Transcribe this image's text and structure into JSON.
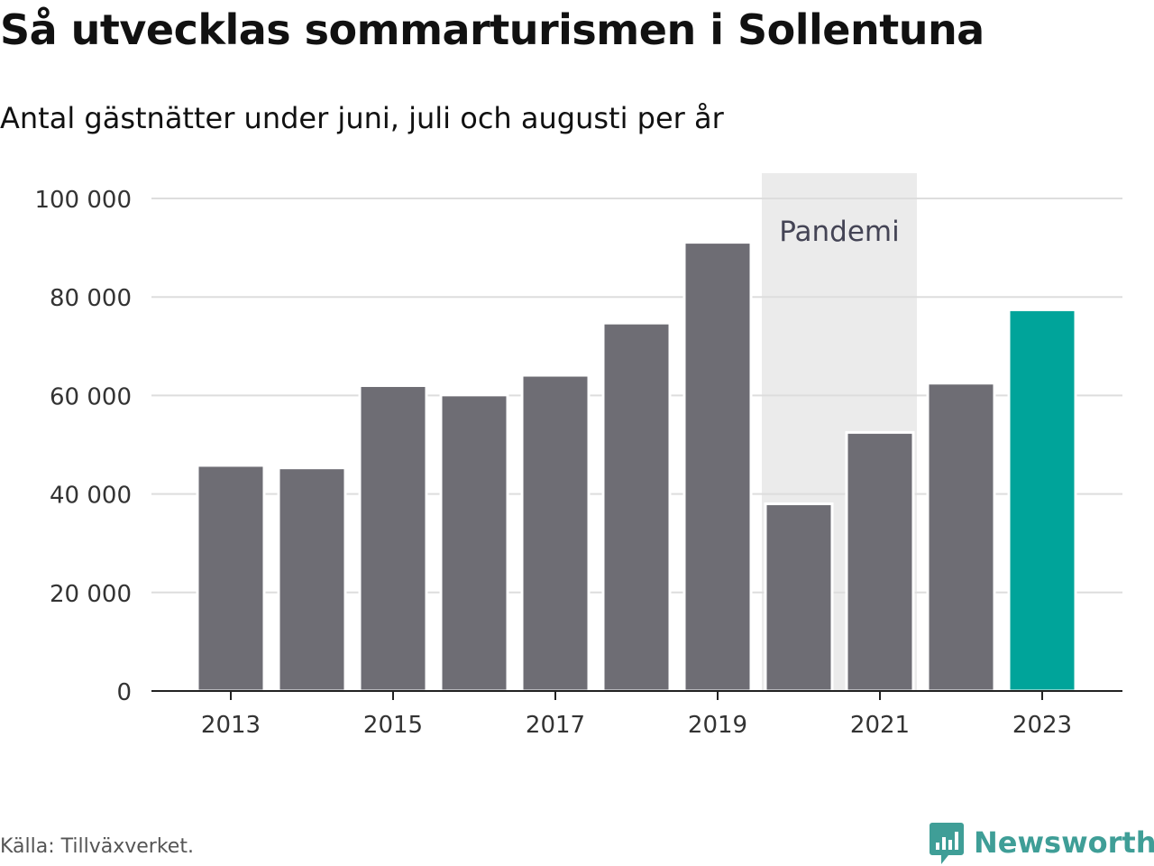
{
  "header": {
    "title": "Så utvecklas sommarturismen i Sollentuna",
    "subtitle": "Antal gästnätter under juni, juli och augusti per år"
  },
  "footer": {
    "source": "Källa: Tillväxverket.",
    "brand": "Newsworthy"
  },
  "colors": {
    "bar": "#6e6d74",
    "highlight": "#00a49a",
    "shade": "#ebebeb",
    "grid": "#dddddd",
    "brand": "#3f9e97"
  },
  "icons": {
    "brand_logo": "newsworthy-chart-bubble-icon"
  },
  "chart_data": {
    "type": "bar",
    "title": "Så utvecklas sommarturismen i Sollentuna",
    "subtitle": "Antal gästnätter under juni, juli och augusti per år",
    "categories": [
      "2013",
      "2014",
      "2015",
      "2016",
      "2017",
      "2018",
      "2019",
      "2020",
      "2021",
      "2022",
      "2023"
    ],
    "values": [
      45800,
      45300,
      62000,
      60100,
      64100,
      74700,
      91100,
      38000,
      52500,
      62500,
      77400
    ],
    "highlight_category": "2023",
    "xtick_labels": [
      "2013",
      "2015",
      "2017",
      "2019",
      "2021",
      "2023"
    ],
    "yticks": [
      0,
      20000,
      40000,
      60000,
      80000,
      100000
    ],
    "ytick_labels": [
      "0",
      "20 000",
      "40 000",
      "60 000",
      "80 000",
      "100 000"
    ],
    "ylim": [
      0,
      100000
    ],
    "xlabel": "",
    "ylabel": "",
    "grid": true,
    "annotation": {
      "label": "Pandemi",
      "from": "2020",
      "to": "2021"
    }
  }
}
